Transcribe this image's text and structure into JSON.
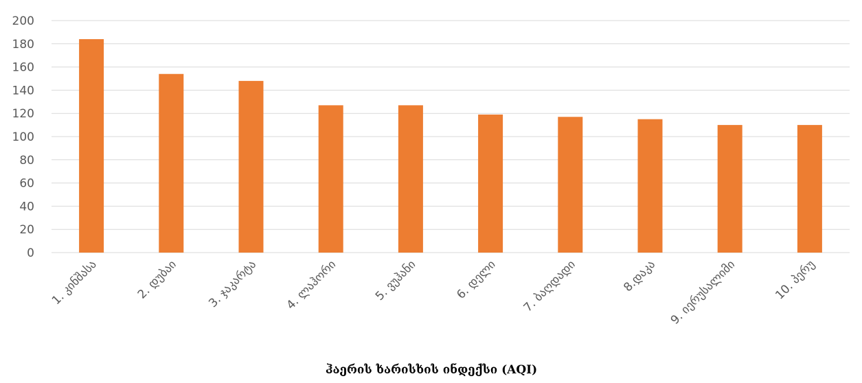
{
  "chart_data": {
    "type": "bar",
    "title": "",
    "xlabel": "ჰაერის ხარისხის ინდექსი (AQI)",
    "ylabel": "",
    "categories": [
      "1. კინშასა",
      "2. დუბაი",
      "3. ჯაკარტა",
      "4. ლაჰორი",
      "5. ვუჰანი",
      "6. დელი",
      "7. ბაღდადი",
      "8.დაკა",
      "9. იერუსალიმი",
      "10. პერუ"
    ],
    "values": [
      184,
      154,
      148,
      127,
      127,
      119,
      117,
      115,
      110,
      110
    ],
    "ylim": [
      0,
      200
    ],
    "yticks": [
      0,
      20,
      40,
      60,
      80,
      100,
      120,
      140,
      160,
      180,
      200
    ],
    "grid": true,
    "legend": "none",
    "bar_color": "#ED7D31"
  }
}
